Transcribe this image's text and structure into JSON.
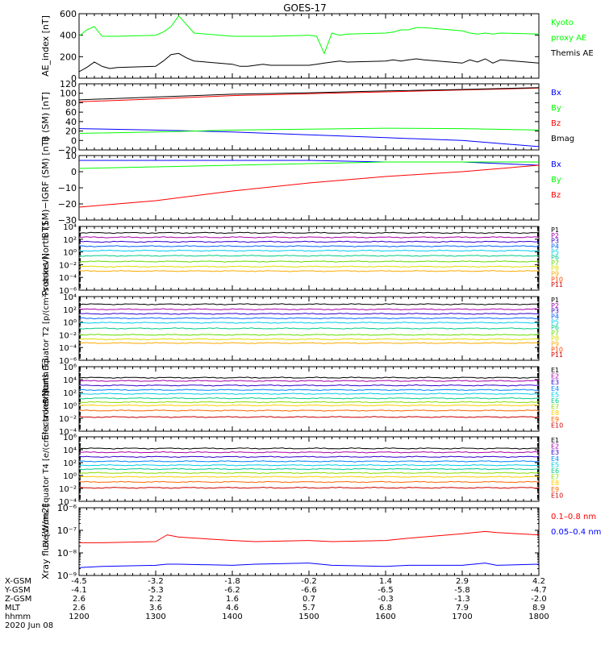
{
  "title": "GOES-17",
  "chart_data": [
    {
      "type": "line",
      "ylabel": "AE_index [nT]",
      "ylim": [
        0,
        600
      ],
      "yticks": [
        "0",
        "200",
        "400",
        "600"
      ],
      "series": [
        {
          "name": "Kyoto proxy AE",
          "legend": [
            "Kyoto",
            "proxy AE"
          ],
          "color": "#00ff00",
          "x": [
            1200,
            1210,
            1220,
            1230,
            1240,
            1250,
            1300,
            1310,
            1320,
            1330,
            1340,
            1350,
            1400,
            1410,
            1420,
            1430,
            1440,
            1450,
            1500,
            1510,
            1520,
            1530,
            1540,
            1550,
            1600,
            1610,
            1620,
            1630,
            1640,
            1650,
            1700,
            1710,
            1720,
            1730,
            1740,
            1750,
            1800
          ],
          "values": [
            390,
            450,
            480,
            390,
            390,
            390,
            400,
            430,
            480,
            580,
            500,
            420,
            390,
            390,
            390,
            390,
            390,
            390,
            400,
            390,
            230,
            420,
            400,
            410,
            420,
            430,
            450,
            450,
            470,
            470,
            440,
            420,
            410,
            420,
            410,
            420,
            410
          ]
        },
        {
          "name": "Themis AE",
          "legend": [
            "Themis AE"
          ],
          "color": "#000000",
          "x": [
            1200,
            1210,
            1220,
            1230,
            1240,
            1250,
            1300,
            1310,
            1320,
            1330,
            1340,
            1350,
            1400,
            1410,
            1420,
            1430,
            1440,
            1450,
            1500,
            1510,
            1520,
            1530,
            1540,
            1550,
            1600,
            1610,
            1620,
            1630,
            1640,
            1650,
            1700,
            1710,
            1720,
            1730,
            1740,
            1750,
            1800
          ],
          "values": [
            60,
            100,
            150,
            110,
            90,
            100,
            110,
            160,
            220,
            230,
            190,
            160,
            130,
            110,
            110,
            120,
            130,
            120,
            120,
            130,
            140,
            150,
            160,
            150,
            160,
            170,
            160,
            170,
            180,
            170,
            140,
            170,
            150,
            180,
            140,
            170,
            140
          ]
        }
      ]
    },
    {
      "type": "line",
      "ylabel": "B (SM) [nT]",
      "ylim": [
        -20,
        120
      ],
      "yticks": [
        "−20",
        "0",
        "20",
        "40",
        "60",
        "80",
        "100",
        "120"
      ],
      "series": [
        {
          "name": "Bx",
          "legend": [
            "Bx"
          ],
          "color": "#0000ff",
          "x": [
            1200,
            1300,
            1400,
            1500,
            1600,
            1700,
            1800
          ],
          "values": [
            25,
            22,
            18,
            12,
            6,
            0,
            -13
          ]
        },
        {
          "name": "By",
          "legend": [
            "By"
          ],
          "color": "#00ff00",
          "x": [
            1200,
            1300,
            1400,
            1500,
            1600,
            1700,
            1800
          ],
          "values": [
            15,
            18,
            22,
            24,
            26,
            25,
            22
          ]
        },
        {
          "name": "Bz",
          "legend": [
            "Bz"
          ],
          "color": "#ff0000",
          "x": [
            1200,
            1300,
            1400,
            1500,
            1600,
            1700,
            1800
          ],
          "values": [
            82,
            88,
            95,
            99,
            103,
            107,
            111
          ]
        },
        {
          "name": "Bmag",
          "legend": [
            "Bmag"
          ],
          "color": "#000000",
          "x": [
            1200,
            1300,
            1400,
            1500,
            1600,
            1700,
            1800
          ],
          "values": [
            86,
            92,
            98,
            101,
            105,
            108,
            112
          ]
        }
      ]
    },
    {
      "type": "line",
      "ylabel": "B (SM)−IGRF (SM) [nT]",
      "ylim": [
        -30,
        10
      ],
      "yticks": [
        "−30",
        "−20",
        "−10",
        "0",
        "10"
      ],
      "series": [
        {
          "name": "Bx",
          "legend": [
            "Bx"
          ],
          "color": "#0000ff",
          "x": [
            1200,
            1300,
            1400,
            1500,
            1600,
            1700,
            1800
          ],
          "values": [
            7,
            7,
            7,
            7,
            6,
            6,
            4
          ]
        },
        {
          "name": "By",
          "legend": [
            "By"
          ],
          "color": "#00ff00",
          "x": [
            1200,
            1300,
            1400,
            1500,
            1600,
            1700,
            1800
          ],
          "values": [
            2,
            3,
            4,
            5,
            6,
            6,
            6
          ]
        },
        {
          "name": "Bz",
          "legend": [
            "Bz"
          ],
          "color": "#ff0000",
          "x": [
            1200,
            1300,
            1400,
            1500,
            1600,
            1700,
            1800
          ],
          "values": [
            -22,
            -18,
            -12,
            -7,
            -3,
            0,
            4
          ]
        }
      ]
    },
    {
      "type": "line",
      "ylabel": "Protons North T1",
      "log": true,
      "ylim": [
        -6,
        4
      ],
      "ytickexp": [
        -6,
        -4,
        -2,
        0,
        2,
        4
      ],
      "series": [
        {
          "name": "P1",
          "legend": [
            "P1"
          ],
          "color": "#000000",
          "values": [
            3
          ]
        },
        {
          "name": "P2",
          "legend": [
            "P2"
          ],
          "color": "#aa00aa",
          "values": [
            2.3
          ]
        },
        {
          "name": "P3",
          "legend": [
            "P3"
          ],
          "color": "#3300cc",
          "values": [
            1.6
          ]
        },
        {
          "name": "P4",
          "legend": [
            "P4"
          ],
          "color": "#0066ff",
          "values": [
            0.9
          ]
        },
        {
          "name": "P5",
          "legend": [
            "P5"
          ],
          "color": "#00ccee",
          "values": [
            0.2
          ]
        },
        {
          "name": "P6",
          "legend": [
            "P6"
          ],
          "color": "#00cc88",
          "values": [
            -0.6
          ]
        },
        {
          "name": "P7",
          "legend": [
            "P7"
          ],
          "color": "#66dd00",
          "values": [
            -1.5
          ]
        },
        {
          "name": "P8",
          "legend": [
            "P8"
          ],
          "color": "#dddd00",
          "values": [
            -2.3
          ]
        },
        {
          "name": "P9",
          "legend": [
            "P9"
          ],
          "color": "#ffaa00",
          "values": [
            -3
          ]
        },
        {
          "name": "P10",
          "legend": [
            "P10"
          ],
          "color": "#ff4400",
          "values": []
        },
        {
          "name": "P11",
          "legend": [
            "P11"
          ],
          "color": "#cc0000",
          "values": []
        }
      ]
    },
    {
      "type": "line",
      "ylabel": "Protons Equator T2 [p/(cm²-s-sr-keV)]",
      "log": true,
      "ylim": [
        -6,
        4
      ],
      "ytickexp": [
        -6,
        -4,
        -2,
        0,
        2,
        4
      ],
      "series": [
        {
          "name": "P1",
          "legend": [
            "P1"
          ],
          "color": "#000000",
          "values": [
            2.8
          ]
        },
        {
          "name": "P2",
          "legend": [
            "P2"
          ],
          "color": "#aa00aa",
          "values": [
            2
          ]
        },
        {
          "name": "P3",
          "legend": [
            "P3"
          ],
          "color": "#3300cc",
          "values": [
            1.3
          ]
        },
        {
          "name": "P4",
          "legend": [
            "P4"
          ],
          "color": "#0066ff",
          "values": [
            0.6
          ]
        },
        {
          "name": "P5",
          "legend": [
            "P5"
          ],
          "color": "#00ccee",
          "values": [
            -0.1
          ]
        },
        {
          "name": "P6",
          "legend": [
            "P6"
          ],
          "color": "#00cc88",
          "values": [
            -1
          ]
        },
        {
          "name": "P7",
          "legend": [
            "P7"
          ],
          "color": "#66dd00",
          "values": [
            -2
          ]
        },
        {
          "name": "P8",
          "legend": [
            "P8"
          ],
          "color": "#dddd00",
          "values": [
            -2.7
          ]
        },
        {
          "name": "P9",
          "legend": [
            "P9"
          ],
          "color": "#ffaa00",
          "values": [
            -3.3
          ]
        },
        {
          "name": "P10",
          "legend": [
            "P10"
          ],
          "color": "#ff4400",
          "values": []
        },
        {
          "name": "P11",
          "legend": [
            "P11"
          ],
          "color": "#cc0000",
          "values": []
        }
      ]
    },
    {
      "type": "line",
      "ylabel": "Electrons North T3",
      "log": true,
      "ylim": [
        -4,
        6
      ],
      "ytickexp": [
        -4,
        -2,
        0,
        2,
        4,
        6
      ],
      "series": [
        {
          "name": "E1",
          "legend": [
            "E1"
          ],
          "color": "#000000",
          "values": [
            4.3
          ]
        },
        {
          "name": "E2",
          "legend": [
            "E2"
          ],
          "color": "#aa00aa",
          "values": [
            3.8
          ]
        },
        {
          "name": "E3",
          "legend": [
            "E3"
          ],
          "color": "#3300cc",
          "values": [
            3.1
          ]
        },
        {
          "name": "E4",
          "legend": [
            "E4"
          ],
          "color": "#0088ff",
          "values": [
            2.4
          ]
        },
        {
          "name": "E5",
          "legend": [
            "E5"
          ],
          "color": "#00ccee",
          "values": [
            1.8
          ]
        },
        {
          "name": "E6",
          "legend": [
            "E6"
          ],
          "color": "#00cc88",
          "values": [
            1.1
          ]
        },
        {
          "name": "E7",
          "legend": [
            "E7"
          ],
          "color": "#88dd00",
          "values": [
            0.5
          ]
        },
        {
          "name": "E8",
          "legend": [
            "E8"
          ],
          "color": "#ffcc00",
          "values": [
            0
          ]
        },
        {
          "name": "E9",
          "legend": [
            "E9"
          ],
          "color": "#ff6600",
          "values": [
            -0.8
          ]
        },
        {
          "name": "E10",
          "legend": [
            "E10"
          ],
          "color": "#cc0000",
          "values": [
            -1.8
          ]
        }
      ]
    },
    {
      "type": "line",
      "ylabel": "Electrons Equator T4 [e/(cm²-s-sr-keV)]",
      "log": true,
      "ylim": [
        -4,
        6
      ],
      "ytickexp": [
        -4,
        -2,
        0,
        2,
        4,
        6
      ],
      "series": [
        {
          "name": "E1",
          "legend": [
            "E1"
          ],
          "color": "#000000",
          "values": [
            4.2
          ]
        },
        {
          "name": "E2",
          "legend": [
            "E2"
          ],
          "color": "#aa00aa",
          "values": [
            3.6
          ]
        },
        {
          "name": "E3",
          "legend": [
            "E3"
          ],
          "color": "#3300cc",
          "values": [
            2.9
          ]
        },
        {
          "name": "E4",
          "legend": [
            "E4"
          ],
          "color": "#0088ff",
          "values": [
            2.2
          ]
        },
        {
          "name": "E5",
          "legend": [
            "E5"
          ],
          "color": "#00ccee",
          "values": [
            1.6
          ]
        },
        {
          "name": "E6",
          "legend": [
            "E6"
          ],
          "color": "#00cc88",
          "values": [
            1
          ]
        },
        {
          "name": "E7",
          "legend": [
            "E7"
          ],
          "color": "#88dd00",
          "values": [
            0.4
          ]
        },
        {
          "name": "E8",
          "legend": [
            "E8"
          ],
          "color": "#ffcc00",
          "values": [
            -0.2
          ]
        },
        {
          "name": "E9",
          "legend": [
            "E9"
          ],
          "color": "#ff6600",
          "values": [
            -1
          ]
        },
        {
          "name": "E10",
          "legend": [
            "E10"
          ],
          "color": "#cc0000",
          "values": [
            -1.9
          ]
        }
      ]
    },
    {
      "type": "line",
      "ylabel": "Xray flux [W/m2]",
      "log": true,
      "ylim": [
        -9,
        -6
      ],
      "yticks": [
        "10⁻⁹",
        "10⁻⁸",
        "10⁻⁷",
        "10⁻⁶"
      ],
      "series": [
        {
          "name": "0.1–0.8 nm",
          "legend": [
            "0.1–0.8 nm"
          ],
          "color": "#ff0000",
          "x": [
            1200,
            1230,
            1300,
            1315,
            1330,
            1400,
            1430,
            1500,
            1530,
            1600,
            1630,
            1700,
            1715,
            1730,
            1745,
            1800
          ],
          "values": [
            -7.55,
            -7.55,
            -7.5,
            -7.2,
            -7.3,
            -7.45,
            -7.5,
            -7.45,
            -7.5,
            -7.45,
            -7.35,
            -7.15,
            -7.1,
            -7.05,
            -7.1,
            -7.2
          ]
        },
        {
          "name": "0.05–0.4 nm",
          "legend": [
            "0.05–0.4 nm"
          ],
          "color": "#0000ff",
          "x": [
            1200,
            1230,
            1300,
            1315,
            1330,
            1400,
            1430,
            1500,
            1530,
            1600,
            1630,
            1700,
            1715,
            1730,
            1745,
            1800
          ],
          "values": [
            -8.65,
            -8.6,
            -8.55,
            -8.5,
            -8.5,
            -8.55,
            -8.5,
            -8.45,
            -8.55,
            -8.6,
            -8.55,
            -8.55,
            -8.5,
            -8.45,
            -8.55,
            -8.5
          ]
        }
      ]
    }
  ],
  "x_axis": {
    "ticks": [
      1200,
      1300,
      1400,
      1500,
      1600,
      1700,
      1800
    ],
    "row_labels": [
      "X-GSM",
      "Y-GSM",
      "Z-GSM",
      "MLT",
      "hhmm"
    ],
    "rows": [
      [
        "-4.5",
        "-3.2",
        "-1.8",
        "-0.2",
        "1.4",
        "2.9",
        "4.2"
      ],
      [
        "-4.1",
        "-5.3",
        "-6.2",
        "-6.6",
        "-6.5",
        "-5.8",
        "-4.7"
      ],
      [
        "2.6",
        "2.2",
        "1.6",
        "0.7",
        "-0.3",
        "-1.3",
        "-2.0"
      ],
      [
        "2.6",
        "3.6",
        "4.6",
        "5.7",
        "6.8",
        "7.9",
        "8.9"
      ],
      [
        "1200",
        "1300",
        "1400",
        "1500",
        "1600",
        "1700",
        "1800"
      ]
    ],
    "date": "2020 Jun 08"
  }
}
